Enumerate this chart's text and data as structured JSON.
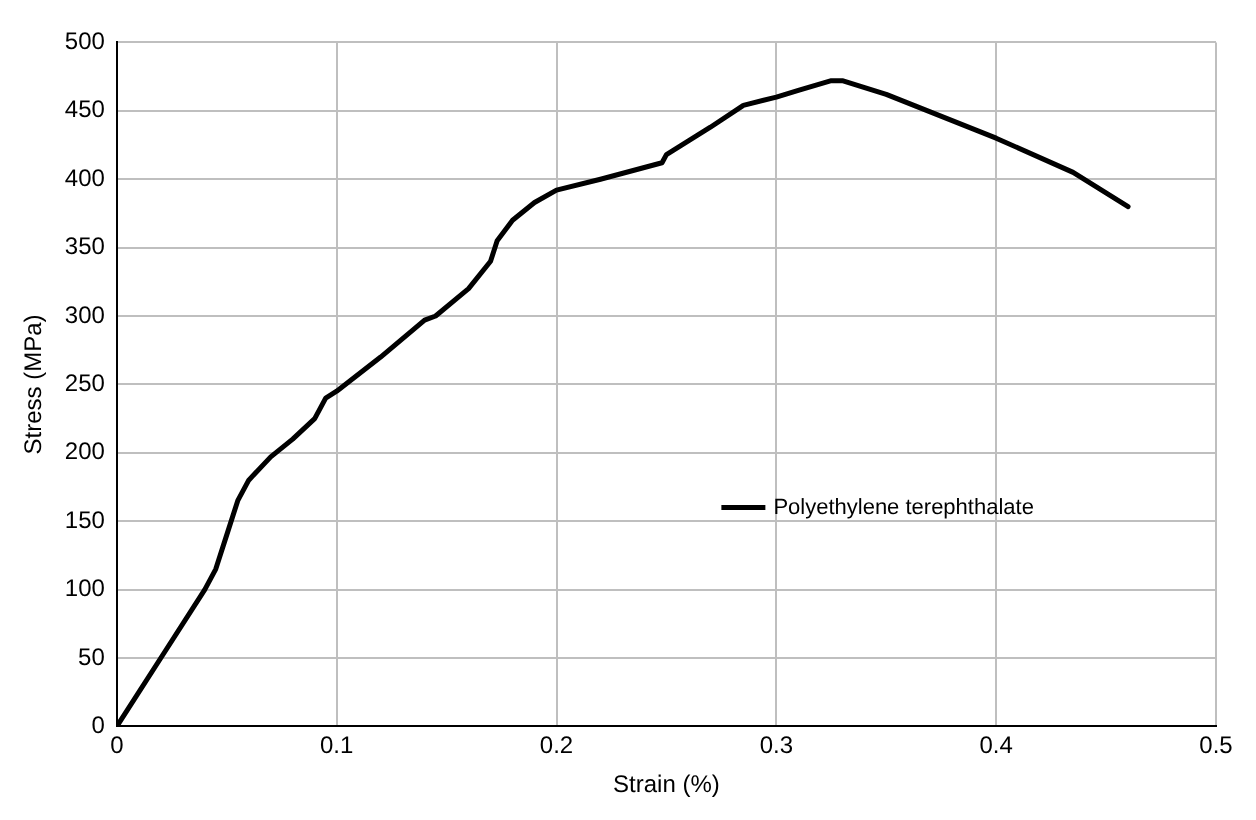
{
  "chart_data": {
    "type": "line",
    "xlabel": "Strain (%)",
    "ylabel": "Stress (MPa)",
    "x": [
      0,
      0.02,
      0.04,
      0.045,
      0.05,
      0.055,
      0.06,
      0.07,
      0.08,
      0.09,
      0.095,
      0.1,
      0.12,
      0.14,
      0.145,
      0.16,
      0.17,
      0.173,
      0.18,
      0.19,
      0.2,
      0.22,
      0.248,
      0.25,
      0.27,
      0.285,
      0.3,
      0.31,
      0.325,
      0.33,
      0.35,
      0.4,
      0.435,
      0.46
    ],
    "series": [
      {
        "name": "Polyethylene terephthalate",
        "color": "#000000",
        "values": [
          0,
          50,
          100,
          115,
          140,
          165,
          180,
          197,
          210,
          225,
          240,
          245,
          270,
          297,
          300,
          320,
          340,
          355,
          370,
          383,
          392,
          400,
          412,
          418,
          438,
          454,
          460,
          465,
          472,
          472,
          462,
          430,
          405,
          380
        ]
      }
    ],
    "xlim": [
      0,
      0.5
    ],
    "xticks": [
      0,
      0.1,
      0.2,
      0.3,
      0.4,
      0.5
    ],
    "ylim": [
      0,
      500
    ],
    "yticks": [
      0,
      50,
      100,
      150,
      200,
      250,
      300,
      350,
      400,
      450,
      500
    ],
    "grid": true,
    "legend": "right",
    "marker": "none",
    "line_style": "solid"
  }
}
